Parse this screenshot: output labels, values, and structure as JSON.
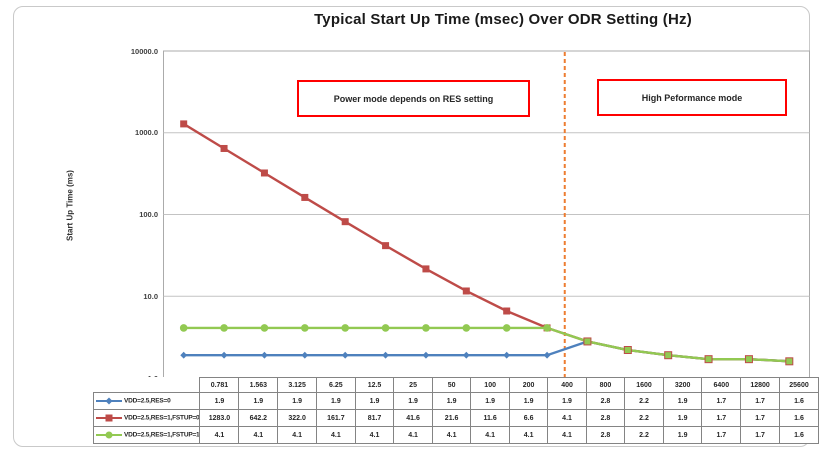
{
  "chart_data": {
    "type": "line",
    "title": "Typical Start Up Time (msec) Over ODR Setting (Hz)",
    "ylabel": "Start Up Time (ms)",
    "xlabel": "",
    "y_scale": "log",
    "ylim": [
      1,
      10000
    ],
    "y_tick_labels": [
      "10000.0",
      "1000.0",
      "100.0",
      "10.0",
      "1.0"
    ],
    "grid": true,
    "legend_position": "table-left",
    "categories": [
      "0.781",
      "1.563",
      "3.125",
      "6.25",
      "12.5",
      "25",
      "50",
      "100",
      "200",
      "400",
      "800",
      "1600",
      "3200",
      "6400",
      "12800",
      "25600"
    ],
    "series": [
      {
        "name": "VDD=2.5,RES=0",
        "color": "#4E81BD",
        "marker": "diamond",
        "values": [
          "1.9",
          "1.9",
          "1.9",
          "1.9",
          "1.9",
          "1.9",
          "1.9",
          "1.9",
          "1.9",
          "1.9",
          "2.8",
          "2.2",
          "1.9",
          "1.7",
          "1.7",
          "1.6"
        ]
      },
      {
        "name": "VDD=2.5,RES=1,FSTUP=0",
        "color": "#BE4B48",
        "marker": "square",
        "values": [
          "1283.0",
          "642.2",
          "322.0",
          "161.7",
          "81.7",
          "41.6",
          "21.6",
          "11.6",
          "6.6",
          "4.1",
          "2.8",
          "2.2",
          "1.9",
          "1.7",
          "1.7",
          "1.6"
        ]
      },
      {
        "name": "VDD=2.5,RES=1,FSTUP=1",
        "color": "#92C952",
        "marker": "circle",
        "values": [
          "4.1",
          "4.1",
          "4.1",
          "4.1",
          "4.1",
          "4.1",
          "4.1",
          "4.1",
          "4.1",
          "4.1",
          "2.8",
          "2.2",
          "1.9",
          "1.7",
          "1.7",
          "1.6"
        ]
      }
    ],
    "annotations": [
      {
        "text": "Power mode depends on RES setting",
        "border_color": "#FF0000"
      },
      {
        "text": "High Peformance mode",
        "border_color": "#FF0000"
      }
    ],
    "divider": {
      "color": "#ED7D31",
      "style": "dashed",
      "between": [
        "400",
        "800"
      ]
    }
  }
}
